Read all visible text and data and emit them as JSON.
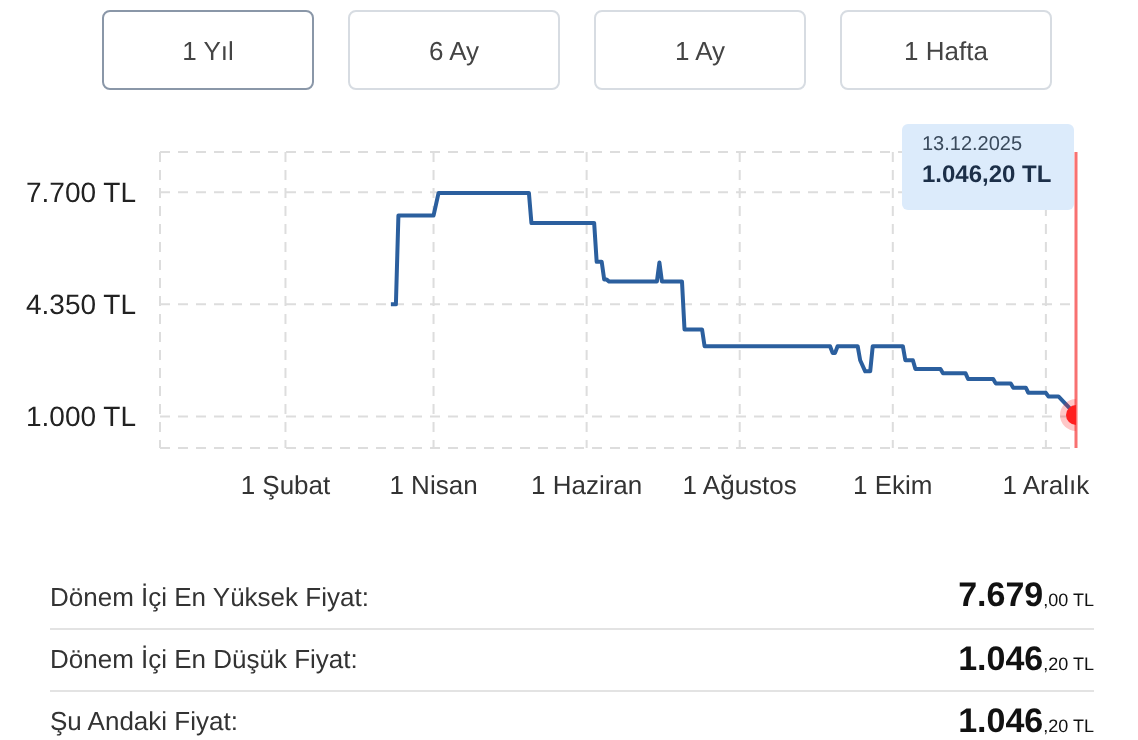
{
  "chart_data": {
    "type": "line",
    "x": [
      "2025-03-15",
      "2025-03-17",
      "2025-03-18",
      "2025-04-01",
      "2025-04-03",
      "2025-05-09",
      "2025-05-10",
      "2025-06-04",
      "2025-06-05",
      "2025-06-07",
      "2025-06-08",
      "2025-06-09",
      "2025-06-10",
      "2025-06-29",
      "2025-06-30",
      "2025-07-01",
      "2025-07-09",
      "2025-07-10",
      "2025-07-17",
      "2025-07-18",
      "2025-09-06",
      "2025-09-07",
      "2025-09-08",
      "2025-09-09",
      "2025-09-17",
      "2025-09-18",
      "2025-09-20",
      "2025-09-22",
      "2025-09-23",
      "2025-10-05",
      "2025-10-06",
      "2025-10-09",
      "2025-10-10",
      "2025-10-20",
      "2025-10-21",
      "2025-10-30",
      "2025-10-31",
      "2025-11-10",
      "2025-11-11",
      "2025-11-17",
      "2025-11-18",
      "2025-11-23",
      "2025-11-24",
      "2025-12-01",
      "2025-12-02",
      "2025-12-06",
      "2025-12-13"
    ],
    "series": [
      {
        "color": "#2b5f9e",
        "values": [
          4350,
          4350,
          7000,
          7000,
          7679,
          7679,
          6780,
          6780,
          5620,
          5620,
          5090,
          5090,
          5030,
          5030,
          5600,
          5030,
          5030,
          3600,
          3600,
          3100,
          3100,
          2900,
          2900,
          3100,
          3100,
          2680,
          2350,
          2350,
          3100,
          3100,
          2680,
          2680,
          2420,
          2420,
          2290,
          2290,
          2120,
          2120,
          1990,
          1990,
          1860,
          1860,
          1710,
          1710,
          1600,
          1600,
          1046.2
        ]
      },
      {
        "type": "scatter",
        "color": "#ff1f1f",
        "x": [
          "2025-12-13"
        ],
        "values": [
          1046.2
        ]
      }
    ],
    "xlim": [
      "2024-12-13",
      "2025-12-13"
    ],
    "xticks": [
      {
        "value": "2025-02-01",
        "label": "1 Şubat"
      },
      {
        "value": "2025-04-01",
        "label": "1 Nisan"
      },
      {
        "value": "2025-06-01",
        "label": "1 Haziran"
      },
      {
        "value": "2025-08-01",
        "label": "1 Ağustos"
      },
      {
        "value": "2025-10-01",
        "label": "1 Ekim"
      },
      {
        "value": "2025-12-01",
        "label": "1 Aralık"
      }
    ],
    "ylim": [
      60,
      8900
    ],
    "yticks": [
      {
        "value": 1000,
        "label": "1.000 TL"
      },
      {
        "value": 4350,
        "label": "4.350 TL"
      },
      {
        "value": 7700,
        "label": "7.700 TL"
      }
    ],
    "grid": true,
    "line_style": "solid",
    "ref_lines": [
      {
        "axis": "x",
        "value": "2025-12-13",
        "color": "#f87171"
      }
    ],
    "annotations": [
      "13.12.2025",
      "1.046,20 TL",
      "1 Yıl",
      "6 Ay",
      "1 Ay",
      "1 Hafta",
      "Dönem İçi En Yüksek Fiyat:",
      "7.679,00 TL",
      "Dönem İçi En Düşük Fiyat:",
      "1.046,20 TL",
      "Şu Andaki Fiyat:",
      "1.046,20 TL"
    ]
  }
}
